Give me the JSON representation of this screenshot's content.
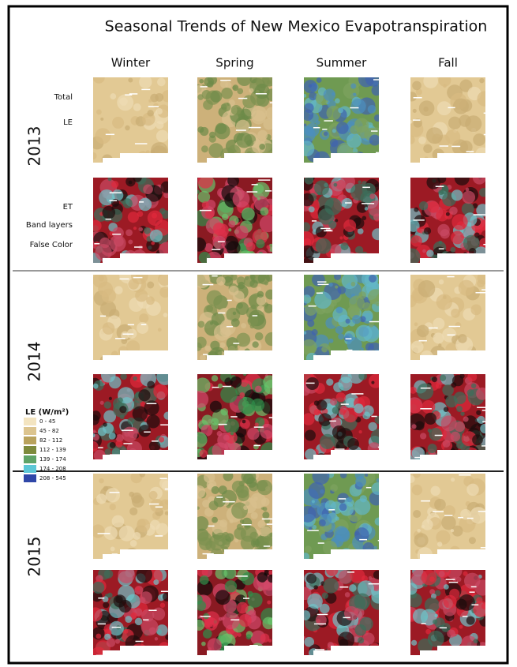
{
  "title": "Seasonal Trends of New Mexico Evapotranspiration",
  "seasons": [
    "Winter",
    "Spring",
    "Summer",
    "Fall"
  ],
  "years": [
    "2013",
    "2014",
    "2015"
  ],
  "row_labels": {
    "total": [
      "Total",
      "LE"
    ],
    "false_color": [
      "ET",
      "Band layers",
      "False Color"
    ]
  },
  "legend": {
    "title": "LE (W/m²)",
    "labels": [
      "0 - 45",
      "45 - 82",
      "82 - 112",
      "112 - 139",
      "139 - 174",
      "174 - 208",
      "208 - 545"
    ]
  }
}
